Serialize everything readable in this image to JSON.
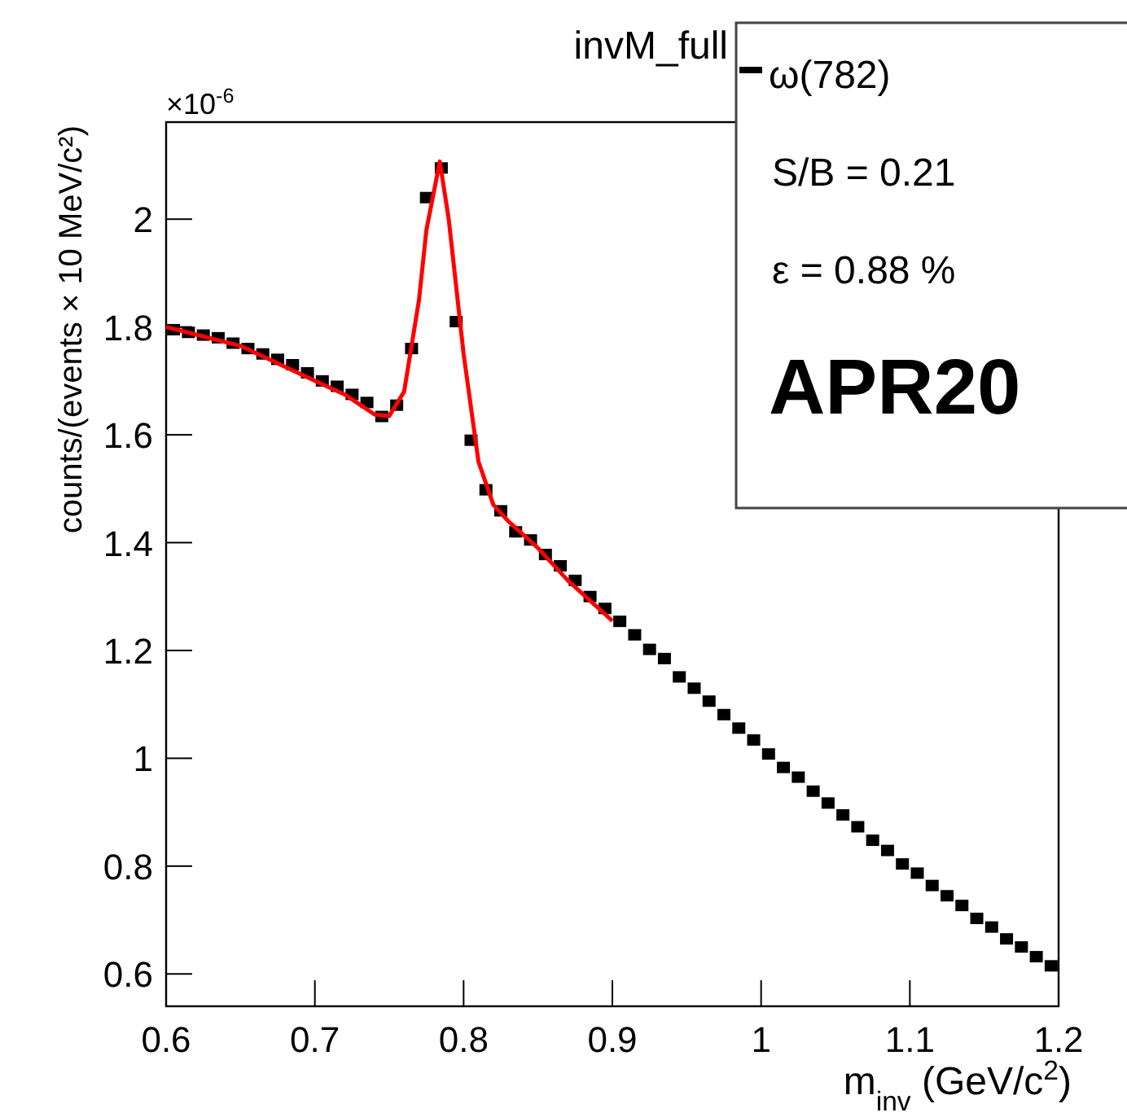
{
  "chart_data": {
    "type": "scatter",
    "title": "invM_full",
    "xlabel": "m$_{inv}$ (GeV/c$^{2}$)",
    "ylabel": "counts/(events × 10 MeV/c²)",
    "annotations": [
      "×10$^{-6}$",
      "S/B = 0.21",
      "ε = 0.88 %",
      "APR20"
    ],
    "xlim": [
      0.6,
      1.2
    ],
    "xticks": [
      0.6,
      0.7,
      0.8,
      0.9,
      1,
      1.1,
      1.2
    ],
    "ylim": [
      0.54,
      2.18
    ],
    "yticks": [
      0.6,
      0.8,
      1,
      1.2,
      1.4,
      1.6,
      1.8,
      2
    ],
    "legend": "top right",
    "grid": false,
    "series": [
      {
        "name": "ω(782)",
        "marker": "square",
        "color": "#000000",
        "x": [
          0.605,
          0.615,
          0.625,
          0.635,
          0.645,
          0.655,
          0.665,
          0.675,
          0.685,
          0.695,
          0.705,
          0.715,
          0.725,
          0.735,
          0.745,
          0.755,
          0.765,
          0.775,
          0.785,
          0.795,
          0.805,
          0.815,
          0.825,
          0.835,
          0.845,
          0.855,
          0.865,
          0.875,
          0.885,
          0.895,
          0.905,
          0.915,
          0.925,
          0.935,
          0.945,
          0.955,
          0.965,
          0.975,
          0.985,
          0.995,
          1.005,
          1.015,
          1.025,
          1.035,
          1.045,
          1.055,
          1.065,
          1.075,
          1.085,
          1.095,
          1.105,
          1.115,
          1.125,
          1.135,
          1.145,
          1.155,
          1.165,
          1.175,
          1.185,
          1.195
        ],
        "values": [
          1.795,
          1.79,
          1.785,
          1.78,
          1.77,
          1.76,
          1.75,
          1.74,
          1.73,
          1.715,
          1.7,
          1.69,
          1.675,
          1.66,
          1.634,
          1.655,
          1.76,
          2.04,
          2.095,
          1.81,
          1.59,
          1.498,
          1.459,
          1.42,
          1.405,
          1.378,
          1.357,
          1.33,
          1.3,
          1.278,
          1.254,
          1.229,
          1.202,
          1.185,
          1.151,
          1.13,
          1.106,
          1.081,
          1.056,
          1.034,
          1.008,
          0.983,
          0.965,
          0.939,
          0.917,
          0.895,
          0.873,
          0.848,
          0.829,
          0.804,
          0.787,
          0.764,
          0.745,
          0.727,
          0.703,
          0.687,
          0.665,
          0.65,
          0.632,
          0.615
        ]
      },
      {
        "type": "line",
        "color": "#ff0000",
        "x": [
          0.6,
          0.65,
          0.7,
          0.72,
          0.74,
          0.75,
          0.76,
          0.77,
          0.775,
          0.784,
          0.79,
          0.8,
          0.81,
          0.82,
          0.83,
          0.85,
          0.87,
          0.9
        ],
        "values": [
          1.8,
          1.765,
          1.7,
          1.675,
          1.638,
          1.635,
          1.68,
          1.85,
          1.98,
          2.107,
          2.0,
          1.75,
          1.55,
          1.47,
          1.44,
          1.39,
          1.33,
          1.255
        ]
      }
    ]
  }
}
